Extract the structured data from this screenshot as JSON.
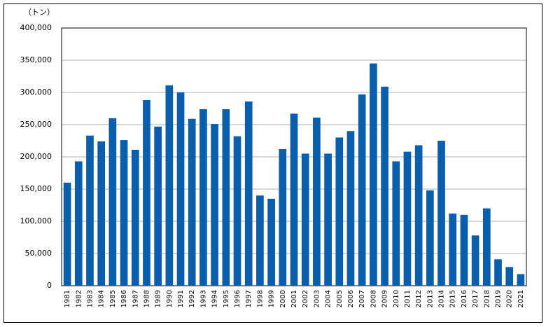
{
  "chart_data": {
    "type": "bar",
    "y_unit": "（トン）",
    "categories": [
      "1981",
      "1982",
      "1983",
      "1984",
      "1985",
      "1986",
      "1987",
      "1988",
      "1989",
      "1990",
      "1991",
      "1992",
      "1993",
      "1994",
      "1995",
      "1996",
      "1997",
      "1998",
      "1999",
      "2000",
      "2001",
      "2002",
      "2003",
      "2004",
      "2005",
      "2006",
      "2007",
      "2008",
      "2009",
      "2010",
      "2011",
      "2012",
      "2013",
      "2014",
      "2015",
      "2016",
      "2017",
      "2018",
      "2019",
      "2020",
      "2021"
    ],
    "values": [
      160000,
      193000,
      233000,
      224000,
      260000,
      226000,
      211000,
      288000,
      247000,
      311000,
      300000,
      259000,
      274000,
      251000,
      274000,
      232000,
      286000,
      140000,
      135000,
      212000,
      267000,
      205000,
      261000,
      205000,
      230000,
      240000,
      297000,
      345000,
      309000,
      193000,
      208000,
      218000,
      148000,
      225000,
      112000,
      110000,
      78000,
      120000,
      41000,
      29000,
      18000
    ],
    "color": "#0a5fac",
    "ylim": [
      0,
      400000
    ],
    "yticks": [
      0,
      {
        "value": 50000,
        "label": "50,000"
      },
      {
        "value": 100000,
        "label": "100,000"
      },
      {
        "value": 150000,
        "label": "150,000"
      },
      {
        "value": 200000,
        "label": "200,000"
      },
      {
        "value": 250000,
        "label": "250,000"
      },
      {
        "value": 300000,
        "label": "300,000"
      },
      {
        "value": 350000,
        "label": "350,000"
      },
      {
        "value": 400000,
        "label": "400,000"
      }
    ],
    "grid": true
  }
}
